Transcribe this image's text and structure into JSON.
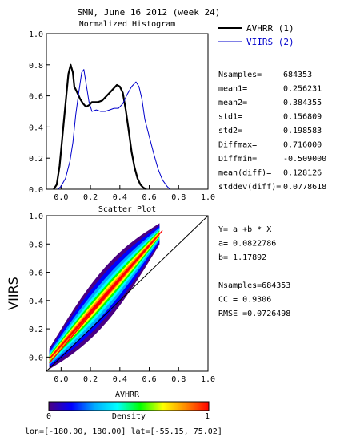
{
  "header": {
    "title": "SMN,  June 16 2012 (week 24)"
  },
  "chart_data": [
    {
      "type": "line",
      "title": "Normalized Histogram",
      "xlim": [
        -0.1,
        1.0
      ],
      "ylim": [
        0.0,
        1.0
      ],
      "x_ticks": [
        "0.0",
        "0.2",
        "0.4",
        "0.6",
        "0.8",
        "1.0"
      ],
      "y_ticks": [
        "0.0",
        "0.2",
        "0.4",
        "0.6",
        "0.8",
        "1.0"
      ],
      "series": [
        {
          "name": "AVHRR (1)",
          "color": "#000000",
          "points": [
            [
              -0.05,
              0.0
            ],
            [
              -0.03,
              0.03
            ],
            [
              -0.01,
              0.15
            ],
            [
              0.01,
              0.35
            ],
            [
              0.03,
              0.55
            ],
            [
              0.05,
              0.74
            ],
            [
              0.065,
              0.8
            ],
            [
              0.08,
              0.75
            ],
            [
              0.09,
              0.66
            ],
            [
              0.11,
              0.62
            ],
            [
              0.13,
              0.58
            ],
            [
              0.15,
              0.55
            ],
            [
              0.17,
              0.53
            ],
            [
              0.19,
              0.54
            ],
            [
              0.21,
              0.56
            ],
            [
              0.23,
              0.56
            ],
            [
              0.25,
              0.56
            ],
            [
              0.28,
              0.57
            ],
            [
              0.3,
              0.59
            ],
            [
              0.33,
              0.62
            ],
            [
              0.36,
              0.65
            ],
            [
              0.38,
              0.67
            ],
            [
              0.4,
              0.66
            ],
            [
              0.42,
              0.62
            ],
            [
              0.44,
              0.51
            ],
            [
              0.46,
              0.38
            ],
            [
              0.48,
              0.24
            ],
            [
              0.5,
              0.14
            ],
            [
              0.52,
              0.07
            ],
            [
              0.54,
              0.03
            ],
            [
              0.56,
              0.01
            ],
            [
              0.58,
              0.0
            ]
          ]
        },
        {
          "name": "VIIRS (2)",
          "color": "#0000cc",
          "points": [
            [
              -0.02,
              0.0
            ],
            [
              0.0,
              0.02
            ],
            [
              0.03,
              0.07
            ],
            [
              0.06,
              0.18
            ],
            [
              0.08,
              0.3
            ],
            [
              0.1,
              0.48
            ],
            [
              0.12,
              0.62
            ],
            [
              0.14,
              0.75
            ],
            [
              0.155,
              0.77
            ],
            [
              0.17,
              0.68
            ],
            [
              0.19,
              0.56
            ],
            [
              0.21,
              0.5
            ],
            [
              0.24,
              0.51
            ],
            [
              0.27,
              0.5
            ],
            [
              0.3,
              0.5
            ],
            [
              0.33,
              0.51
            ],
            [
              0.36,
              0.52
            ],
            [
              0.39,
              0.52
            ],
            [
              0.42,
              0.55
            ],
            [
              0.45,
              0.61
            ],
            [
              0.48,
              0.66
            ],
            [
              0.51,
              0.69
            ],
            [
              0.53,
              0.66
            ],
            [
              0.55,
              0.58
            ],
            [
              0.57,
              0.45
            ],
            [
              0.6,
              0.34
            ],
            [
              0.63,
              0.23
            ],
            [
              0.66,
              0.13
            ],
            [
              0.69,
              0.06
            ],
            [
              0.72,
              0.02
            ],
            [
              0.74,
              0.0
            ]
          ]
        }
      ],
      "stats": [
        {
          "label": "Nsamples=",
          "value": "684353"
        },
        {
          "label": "mean1=",
          "value": "0.256231"
        },
        {
          "label": "mean2=",
          "value": "0.384355"
        },
        {
          "label": "std1=",
          "value": "0.156809"
        },
        {
          "label": "std2=",
          "value": "0.198583"
        },
        {
          "label": "Diffmax=",
          "value": "0.716000"
        },
        {
          "label": "Diffmin=",
          "value": "-0.509000"
        },
        {
          "label": "mean(diff)=",
          "value": "0.128126"
        },
        {
          "label": "stddev(diff)=",
          "value": "0.0778618"
        }
      ]
    },
    {
      "type": "scatter",
      "title": "Scatter Plot",
      "xlabel": "AVHRR",
      "ylabel": "VIIRS",
      "xlim": [
        -0.1,
        1.0
      ],
      "ylim": [
        -0.1,
        1.0
      ],
      "x_ticks": [
        "0.0",
        "0.2",
        "0.4",
        "0.6",
        "0.8",
        "1.0"
      ],
      "y_ticks": [
        "0.0",
        "0.2",
        "0.4",
        "0.6",
        "0.8",
        "1.0"
      ],
      "fit": {
        "a": 0.0822786,
        "b": 1.17892,
        "x_range": [
          -0.08,
          0.67
        ],
        "color": "#ff0000"
      },
      "identity_line": {
        "from": [
          -0.1,
          -0.1
        ],
        "to": [
          1.0,
          1.0
        ]
      },
      "stats": [
        "Y= a +b * X",
        "a= 0.0822786",
        "b= 1.17892",
        "",
        "Nsamples=684353",
        "CC = 0.9306",
        "RMSE =0.0726498"
      ],
      "colorbar": {
        "label": "Density",
        "min_label": "0",
        "max_label": "1",
        "stops": [
          "#4b0082",
          "#0000ff",
          "#00aaff",
          "#00ffff",
          "#00ff00",
          "#ffff00",
          "#ff8800",
          "#ff0000"
        ]
      }
    }
  ],
  "footer": {
    "coords": "lon=[-180.00, 180.00] lat=[-55.15, 75.02]"
  }
}
